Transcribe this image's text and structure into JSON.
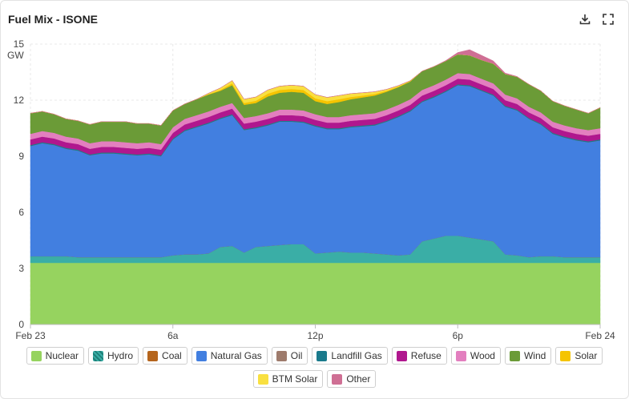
{
  "header": {
    "title": "Fuel Mix - ISONE",
    "download_icon": "download-icon",
    "expand_icon": "fullscreen-icon"
  },
  "chart_data": {
    "type": "area",
    "stacked": true,
    "title": "Fuel Mix - ISONE",
    "ylabel": "GW",
    "ylim": [
      0,
      15
    ],
    "yticks": [
      0,
      3,
      6,
      9,
      12,
      15
    ],
    "xlim_hours": [
      0,
      24
    ],
    "xticks": [
      {
        "hour": 0,
        "label": "Feb 23"
      },
      {
        "hour": 6,
        "label": "6a"
      },
      {
        "hour": 12,
        "label": "12p"
      },
      {
        "hour": 18,
        "label": "6p"
      },
      {
        "hour": 24,
        "label": "Feb 24"
      }
    ],
    "grid": true,
    "legend_position": "bottom",
    "x": [
      0,
      0.5,
      1,
      1.5,
      2,
      2.5,
      3,
      3.5,
      4,
      4.5,
      5,
      5.5,
      6,
      6.5,
      7,
      7.5,
      8,
      8.5,
      9,
      9.5,
      10,
      10.5,
      11,
      11.5,
      12,
      12.5,
      13,
      13.5,
      14,
      14.5,
      15,
      15.5,
      16,
      16.5,
      17,
      17.5,
      18,
      18.5,
      19,
      19.5,
      20,
      20.5,
      21,
      21.5,
      22,
      22.5,
      23,
      23.5,
      24
    ],
    "series": [
      {
        "name": "Nuclear",
        "color": "#96d35f",
        "values": [
          3.3,
          3.3,
          3.3,
          3.3,
          3.3,
          3.3,
          3.3,
          3.3,
          3.3,
          3.3,
          3.3,
          3.3,
          3.3,
          3.3,
          3.3,
          3.3,
          3.3,
          3.3,
          3.3,
          3.3,
          3.3,
          3.3,
          3.3,
          3.3,
          3.3,
          3.3,
          3.3,
          3.3,
          3.3,
          3.3,
          3.3,
          3.3,
          3.3,
          3.3,
          3.3,
          3.3,
          3.3,
          3.3,
          3.3,
          3.3,
          3.3,
          3.3,
          3.3,
          3.3,
          3.3,
          3.3,
          3.3,
          3.3,
          3.3
        ]
      },
      {
        "name": "Hydro",
        "color": "#3aaea6",
        "values": [
          0.35,
          0.35,
          0.35,
          0.35,
          0.3,
          0.3,
          0.3,
          0.3,
          0.3,
          0.3,
          0.3,
          0.3,
          0.4,
          0.45,
          0.45,
          0.5,
          0.85,
          0.9,
          0.55,
          0.85,
          0.9,
          0.95,
          1.0,
          1.0,
          0.5,
          0.55,
          0.6,
          0.55,
          0.55,
          0.5,
          0.45,
          0.4,
          0.45,
          1.15,
          1.3,
          1.45,
          1.45,
          1.35,
          1.25,
          1.15,
          0.45,
          0.4,
          0.3,
          0.35,
          0.35,
          0.3,
          0.3,
          0.3,
          0.3
        ]
      },
      {
        "name": "Coal",
        "color": "#b5651d",
        "values": [
          0,
          0,
          0,
          0,
          0,
          0,
          0,
          0,
          0,
          0,
          0,
          0,
          0,
          0,
          0,
          0,
          0,
          0,
          0,
          0,
          0,
          0,
          0,
          0,
          0,
          0,
          0,
          0,
          0,
          0,
          0,
          0,
          0,
          0,
          0,
          0,
          0,
          0,
          0,
          0,
          0,
          0,
          0,
          0,
          0,
          0,
          0,
          0,
          0
        ]
      },
      {
        "name": "Natural Gas",
        "color": "#427fe0",
        "values": [
          5.9,
          6.05,
          5.95,
          5.75,
          5.7,
          5.45,
          5.55,
          5.55,
          5.5,
          5.45,
          5.5,
          5.4,
          6.2,
          6.6,
          6.8,
          6.95,
          6.85,
          7.0,
          6.55,
          6.35,
          6.45,
          6.6,
          6.55,
          6.5,
          6.8,
          6.6,
          6.55,
          6.7,
          6.75,
          6.85,
          7.1,
          7.4,
          7.65,
          7.45,
          7.55,
          7.7,
          8.05,
          8.1,
          7.95,
          7.8,
          7.9,
          7.75,
          7.4,
          7.05,
          6.55,
          6.4,
          6.25,
          6.15,
          6.25
        ]
      },
      {
        "name": "Oil",
        "color": "#9e7b6c",
        "values": [
          0,
          0,
          0,
          0,
          0,
          0,
          0,
          0,
          0,
          0,
          0,
          0,
          0,
          0,
          0,
          0,
          0,
          0,
          0,
          0,
          0,
          0,
          0,
          0,
          0,
          0,
          0,
          0,
          0,
          0,
          0,
          0,
          0,
          0,
          0,
          0,
          0,
          0,
          0,
          0,
          0,
          0,
          0,
          0,
          0,
          0,
          0,
          0,
          0
        ]
      },
      {
        "name": "Landfill Gas",
        "color": "#1a7a8c",
        "values": [
          0.05,
          0.05,
          0.05,
          0.05,
          0.05,
          0.05,
          0.05,
          0.05,
          0.05,
          0.05,
          0.05,
          0.05,
          0.05,
          0.05,
          0.05,
          0.05,
          0.05,
          0.05,
          0.05,
          0.05,
          0.05,
          0.05,
          0.05,
          0.05,
          0.05,
          0.05,
          0.05,
          0.05,
          0.05,
          0.05,
          0.05,
          0.05,
          0.05,
          0.05,
          0.05,
          0.05,
          0.05,
          0.05,
          0.05,
          0.05,
          0.05,
          0.05,
          0.05,
          0.05,
          0.05,
          0.05,
          0.05,
          0.05,
          0.05
        ]
      },
      {
        "name": "Refuse",
        "color": "#b0178e",
        "values": [
          0.3,
          0.3,
          0.3,
          0.3,
          0.3,
          0.3,
          0.3,
          0.3,
          0.3,
          0.3,
          0.3,
          0.3,
          0.3,
          0.3,
          0.3,
          0.3,
          0.3,
          0.3,
          0.3,
          0.3,
          0.3,
          0.3,
          0.3,
          0.3,
          0.3,
          0.3,
          0.3,
          0.3,
          0.3,
          0.3,
          0.3,
          0.3,
          0.3,
          0.3,
          0.3,
          0.3,
          0.3,
          0.3,
          0.3,
          0.3,
          0.3,
          0.3,
          0.3,
          0.3,
          0.3,
          0.3,
          0.3,
          0.3,
          0.3
        ]
      },
      {
        "name": "Wood",
        "color": "#e37fbf",
        "values": [
          0.3,
          0.3,
          0.3,
          0.3,
          0.3,
          0.3,
          0.3,
          0.3,
          0.3,
          0.3,
          0.3,
          0.3,
          0.3,
          0.3,
          0.3,
          0.3,
          0.3,
          0.3,
          0.3,
          0.3,
          0.3,
          0.3,
          0.3,
          0.3,
          0.3,
          0.3,
          0.3,
          0.3,
          0.3,
          0.3,
          0.3,
          0.3,
          0.3,
          0.3,
          0.3,
          0.3,
          0.3,
          0.3,
          0.3,
          0.3,
          0.3,
          0.3,
          0.3,
          0.3,
          0.3,
          0.3,
          0.3,
          0.3,
          0.3
        ]
      },
      {
        "name": "Wind",
        "color": "#6b9b37",
        "values": [
          1.1,
          1.05,
          1.0,
          0.95,
          0.95,
          1.0,
          1.05,
          1.05,
          1.1,
          1.05,
          1.0,
          1.0,
          0.9,
          0.8,
          0.85,
          0.9,
          0.85,
          0.95,
          0.7,
          0.7,
          0.9,
          0.9,
          0.95,
          0.95,
          0.7,
          0.7,
          0.8,
          0.85,
          0.9,
          0.95,
          0.95,
          0.95,
          0.95,
          1.0,
          1.0,
          1.0,
          1.0,
          1.0,
          1.0,
          1.05,
          1.1,
          1.15,
          1.2,
          1.15,
          1.1,
          1.05,
          1.0,
          0.9,
          1.1
        ]
      },
      {
        "name": "Solar",
        "color": "#f5c400",
        "values": [
          0,
          0,
          0,
          0,
          0,
          0,
          0,
          0,
          0,
          0,
          0,
          0,
          0,
          0,
          0,
          0.02,
          0.05,
          0.1,
          0.1,
          0.12,
          0.15,
          0.15,
          0.15,
          0.15,
          0.15,
          0.15,
          0.15,
          0.12,
          0.1,
          0.08,
          0.05,
          0.03,
          0.02,
          0,
          0,
          0,
          0,
          0,
          0,
          0,
          0,
          0,
          0,
          0,
          0,
          0,
          0,
          0,
          0
        ]
      },
      {
        "name": "BTM Solar",
        "color": "#f9e040",
        "values": [
          0,
          0,
          0,
          0,
          0,
          0,
          0,
          0,
          0,
          0,
          0,
          0,
          0,
          0,
          0,
          0.05,
          0.1,
          0.15,
          0.2,
          0.2,
          0.2,
          0.2,
          0.2,
          0.2,
          0.2,
          0.2,
          0.2,
          0.18,
          0.15,
          0.12,
          0.08,
          0.05,
          0.02,
          0,
          0,
          0,
          0,
          0,
          0,
          0,
          0,
          0,
          0,
          0,
          0,
          0,
          0,
          0,
          0
        ]
      },
      {
        "name": "Other",
        "color": "#cf6f94",
        "values": [
          0,
          0,
          0,
          0,
          0,
          0,
          0,
          0,
          0,
          0,
          0,
          0,
          0,
          0,
          0,
          0,
          0,
          0,
          0,
          0,
          0,
          0,
          0,
          0,
          0,
          0,
          0,
          0,
          0,
          0,
          0,
          0,
          0,
          0,
          0,
          0.02,
          0.1,
          0.3,
          0.25,
          0.15,
          0.05,
          0.02,
          0,
          0,
          0,
          0,
          0,
          0,
          0
        ]
      }
    ]
  }
}
